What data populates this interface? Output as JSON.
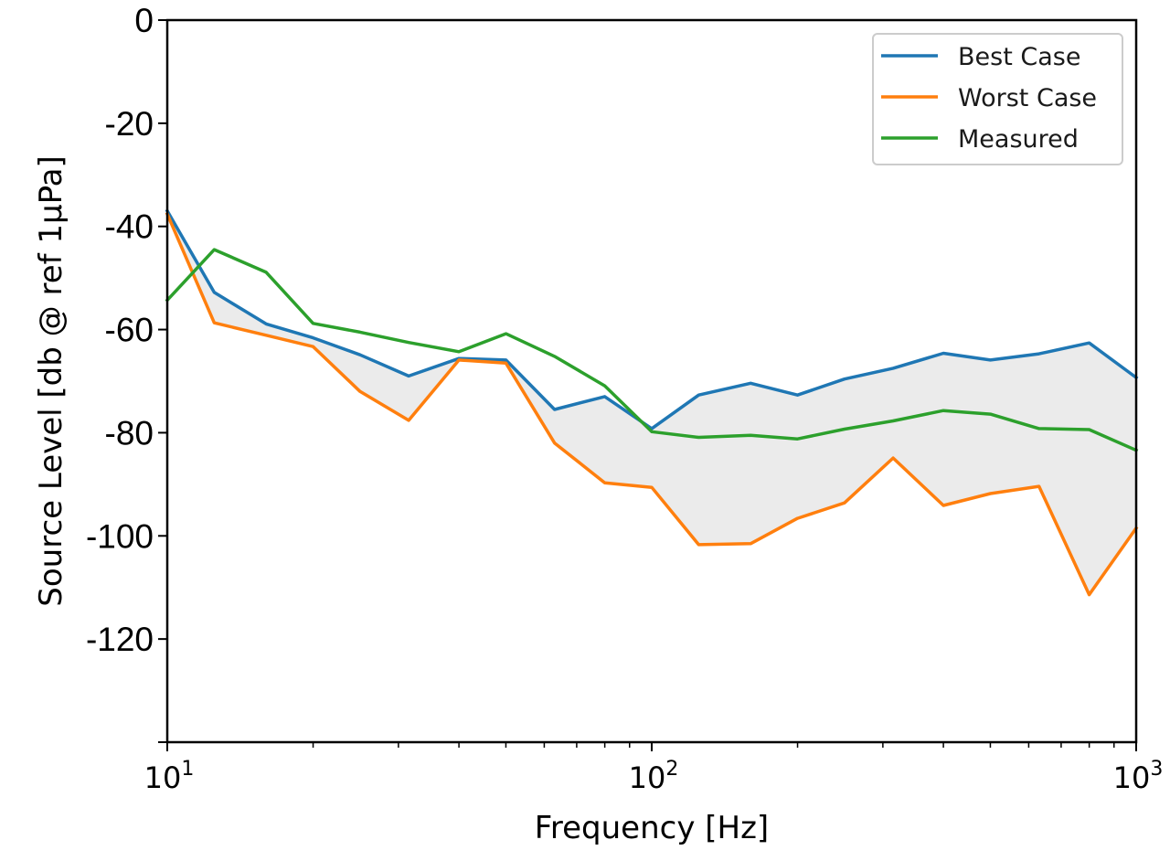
{
  "chart_data": {
    "type": "line",
    "title": "",
    "xlabel": "Frequency [Hz]",
    "ylabel": "Source Level [db @ ref 1μPa]",
    "xscale": "log",
    "xlim": [
      10,
      1000
    ],
    "ylim": [
      -140,
      0
    ],
    "grid": false,
    "legend_position": "top-right",
    "x": [
      10,
      12.5,
      16,
      20,
      25,
      31.5,
      40,
      50,
      63,
      80,
      100,
      125,
      160,
      200,
      250,
      315,
      400,
      500,
      630,
      800,
      1000
    ],
    "series": [
      {
        "name": "Best Case",
        "color": "#1f77b4",
        "values": [
          -37,
          -52.8,
          -58.9,
          -61.6,
          -64.9,
          -69.0,
          -65.6,
          -65.9,
          -75.5,
          -73.0,
          -79.2,
          -72.7,
          -70.4,
          -72.7,
          -69.6,
          -67.5,
          -64.6,
          -65.9,
          -64.7,
          -62.6,
          -69.3
        ]
      },
      {
        "name": "Worst Case",
        "color": "#ff7f0e",
        "values": [
          -37.6,
          -58.7,
          -61.1,
          -63.3,
          -72.0,
          -77.6,
          -65.9,
          -66.5,
          -82.0,
          -89.7,
          -90.6,
          -101.7,
          -101.5,
          -96.6,
          -93.6,
          -84.9,
          -94.1,
          -91.8,
          -90.4,
          -111.4,
          -98.5
        ]
      },
      {
        "name": "Measured",
        "color": "#2ca02c",
        "values": [
          -54.3,
          -44.5,
          -48.9,
          -58.8,
          -60.5,
          -62.5,
          -64.3,
          -60.8,
          -65.2,
          -70.9,
          -79.8,
          -80.9,
          -80.5,
          -81.2,
          -79.3,
          -77.7,
          -75.7,
          -76.4,
          -79.2,
          -79.4,
          -83.4
        ]
      }
    ],
    "fill_between": {
      "upper": "Best Case",
      "lower": "Worst Case",
      "color": "#ebebeb"
    },
    "yticks": [
      0,
      -20,
      -40,
      -60,
      -80,
      -100,
      -120
    ],
    "ytick_labels": [
      "0",
      "-20",
      "-40",
      "-60",
      "-80",
      "-100",
      "-120"
    ],
    "xticks": [
      {
        "value": 10,
        "base": "10",
        "exp": "1"
      },
      {
        "value": 100,
        "base": "10",
        "exp": "2"
      },
      {
        "value": 1000,
        "base": "10",
        "exp": "3"
      }
    ],
    "legend": [
      "Best Case",
      "Worst Case",
      "Measured"
    ]
  }
}
